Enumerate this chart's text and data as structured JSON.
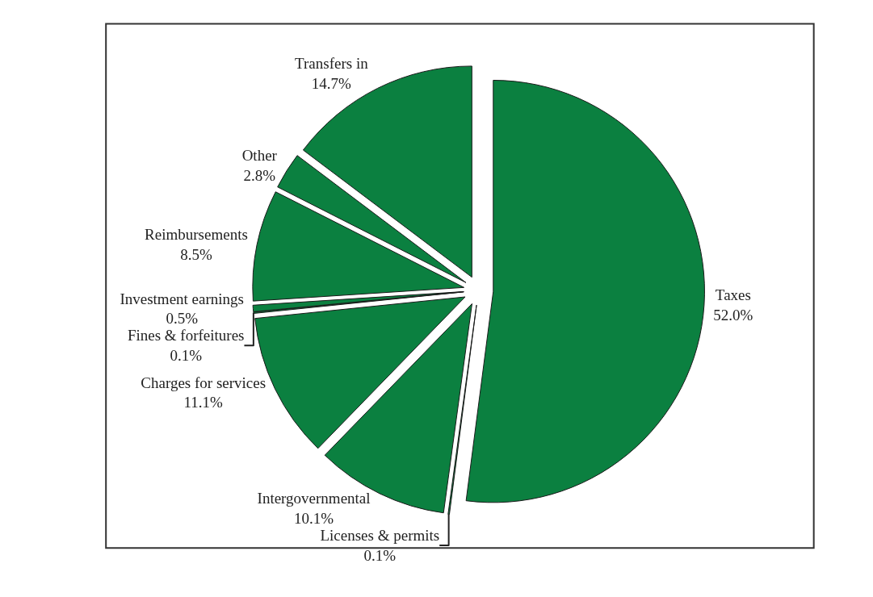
{
  "chart_data": {
    "type": "pie",
    "categories": [
      "Taxes",
      "Licenses & permits",
      "Intergovernmental",
      "Charges for services",
      "Fines & forfeitures",
      "Investment earnings",
      "Reimbursements",
      "Other",
      "Transfers in"
    ],
    "values": [
      52.0,
      0.1,
      10.1,
      11.1,
      0.1,
      0.5,
      8.5,
      2.8,
      14.7
    ],
    "value_labels": [
      "52.0%",
      "0.1%",
      "10.1%",
      "11.1%",
      "0.1%",
      "0.5%",
      "8.5%",
      "2.8%",
      "14.7%"
    ],
    "colors": [
      "#0b8040",
      "#0b8040",
      "#0b8040",
      "#0b8040",
      "#0b8040",
      "#0b8040",
      "#0b8040",
      "#0b8040",
      "#0b8040"
    ],
    "legend": false
  }
}
